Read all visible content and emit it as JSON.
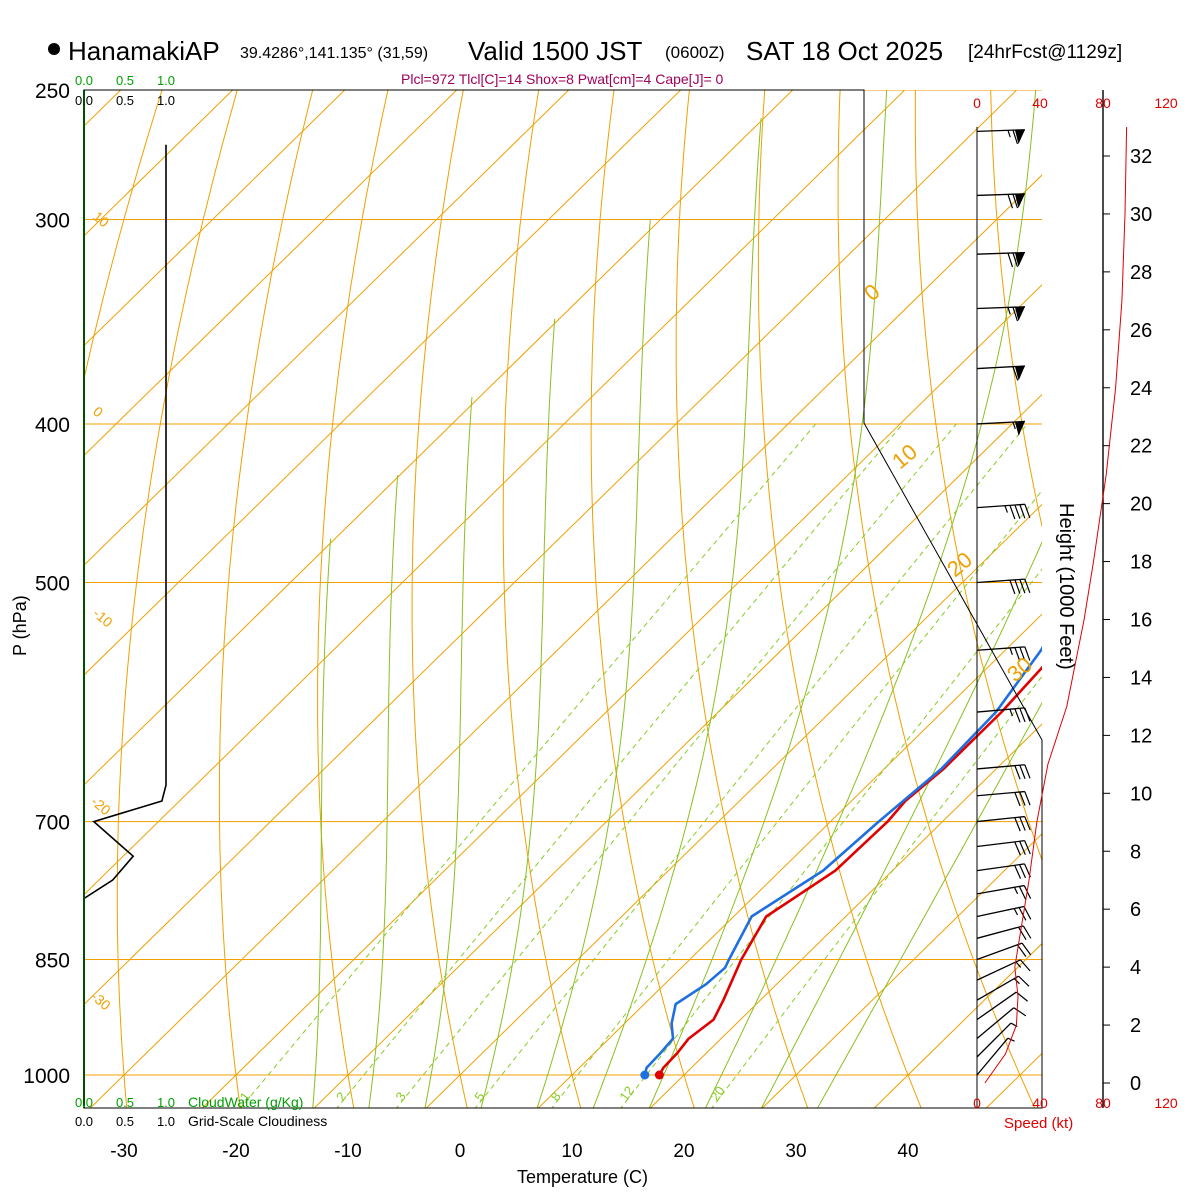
{
  "header": {
    "station": "HanamakiAP",
    "coords": "39.4286°,141.135° (31,59)",
    "valid": "Valid 1500 JST",
    "valid_utc": "(0600Z)",
    "date": "SAT 18 Oct 2025",
    "forecast": "[24hrFcst@1129z]",
    "indices": "Plcl=972 Tlcl[C]=14 Shox=8 Pwat[cm]=4 Cape[J]= 0"
  },
  "colors": {
    "isotherm": "#f0a000",
    "dry_adiabat": "#f0a000",
    "moist_adiabat": "#88c020",
    "mixing_ratio": "#88cc22",
    "temperature": "#e00000",
    "dewpoint": "#1e6fe0",
    "cloud": "#000000",
    "accent_green": "#00a000",
    "speed": "#e00000",
    "indices": "#a0005a"
  },
  "chart_data": {
    "type": "line",
    "title": "HanamakiAP Valid 1500 JST (0600Z) SAT 18 Oct 2025 [24hrFcst@1129z]",
    "xlabel": "Temperature (C)",
    "ylabel": "P (hPa)",
    "y2label": "Height (1000 Feet)",
    "speed_label": "Speed (kt)",
    "xlim": [
      -33,
      46
    ],
    "ylim": [
      1000,
      250
    ],
    "x_ticks": [
      "-30",
      "-20",
      "-10",
      "0",
      "10",
      "20",
      "30",
      "40"
    ],
    "p_ticks": [
      "250",
      "300",
      "400",
      "500",
      "700",
      "850",
      "1000"
    ],
    "height_ticks": [
      "0",
      "2",
      "4",
      "6",
      "8",
      "10",
      "12",
      "14",
      "16",
      "18",
      "20",
      "22",
      "24",
      "26",
      "28",
      "30",
      "32"
    ],
    "speed_ticks": [
      "0",
      "40",
      "80",
      "120"
    ],
    "cloud_labels": {
      "top_values": [
        "0.0",
        "0.5",
        "1.0"
      ],
      "top_values_black": [
        "0.0",
        "0.5",
        "1.0"
      ],
      "bottom_cloudwater": "CloudWater (g/Kg)",
      "bottom_cloudiness": "Grid-Scale Cloudiness",
      "bottom_values": [
        "0.0",
        "0.5",
        "1.0"
      ]
    },
    "mixing_ratio_labels": [
      "1",
      "2",
      "3",
      "5",
      "8",
      "12",
      "20"
    ],
    "mixing_ratios": [
      1,
      2,
      3,
      5,
      8,
      12,
      20
    ],
    "dry_adiabat_labels": [
      "10",
      "0",
      "-10",
      "-20",
      "-30"
    ],
    "right_theta_labels": [
      "0",
      "10",
      "20",
      "30"
    ],
    "series": [
      {
        "name": "Temperature",
        "points": [
          {
            "p": 1000,
            "t": 17.8
          },
          {
            "p": 990,
            "t": 17.5
          },
          {
            "p": 970,
            "t": 17.4
          },
          {
            "p": 950,
            "t": 17.1
          },
          {
            "p": 925,
            "t": 17.6
          },
          {
            "p": 900,
            "t": 16.7
          },
          {
            "p": 850,
            "t": 14.6
          },
          {
            "p": 800,
            "t": 12.9
          },
          {
            "p": 750,
            "t": 14.9
          },
          {
            "p": 700,
            "t": 15.1
          },
          {
            "p": 680,
            "t": 14.8
          },
          {
            "p": 650,
            "t": 15.3
          },
          {
            "p": 600,
            "t": 15.3
          },
          {
            "p": 550,
            "t": 14.7
          },
          {
            "p": 500,
            "t": 13.1
          },
          {
            "p": 450,
            "t": 10.6
          },
          {
            "p": 400,
            "t": 6.3
          },
          {
            "p": 350,
            "t": 0.4
          },
          {
            "p": 320,
            "t": -4.6
          },
          {
            "p": 300,
            "t": -7.7
          },
          {
            "p": 270,
            "t": -12.6
          }
        ]
      },
      {
        "name": "Dewpoint",
        "points": [
          {
            "p": 1000,
            "t": 16.5
          },
          {
            "p": 990,
            "t": 16.0
          },
          {
            "p": 970,
            "t": 15.9
          },
          {
            "p": 950,
            "t": 15.7
          },
          {
            "p": 930,
            "t": 14.2
          },
          {
            "p": 905,
            "t": 12.8
          },
          {
            "p": 880,
            "t": 13.7
          },
          {
            "p": 860,
            "t": 13.9
          },
          {
            "p": 850,
            "t": 13.5
          },
          {
            "p": 800,
            "t": 11.6
          },
          {
            "p": 750,
            "t": 13.8
          },
          {
            "p": 700,
            "t": 14.3
          },
          {
            "p": 650,
            "t": 15.1
          },
          {
            "p": 600,
            "t": 14.8
          },
          {
            "p": 550,
            "t": 13.2
          },
          {
            "p": 500,
            "t": 10.3
          },
          {
            "p": 450,
            "t": 6.5
          },
          {
            "p": 400,
            "t": 2.0
          },
          {
            "p": 350,
            "t": -4.2
          },
          {
            "p": 320,
            "t": -8.8
          },
          {
            "p": 300,
            "t": -12.8
          },
          {
            "p": 270,
            "t": -18.1
          }
        ]
      }
    ],
    "cloudiness": [
      {
        "p": 1000,
        "c": 0.0
      },
      {
        "p": 780,
        "c": 0.0
      },
      {
        "p": 760,
        "c": 0.35
      },
      {
        "p": 735,
        "c": 0.6
      },
      {
        "p": 700,
        "c": 0.12
      },
      {
        "p": 680,
        "c": 0.95
      },
      {
        "p": 665,
        "c": 1.0
      },
      {
        "p": 270,
        "c": 1.0
      }
    ],
    "winds": [
      {
        "p": 1000,
        "dir": 220,
        "spd": 5
      },
      {
        "p": 975,
        "dir": 225,
        "spd": 7
      },
      {
        "p": 950,
        "dir": 230,
        "spd": 10
      },
      {
        "p": 925,
        "dir": 235,
        "spd": 12
      },
      {
        "p": 900,
        "dir": 240,
        "spd": 15
      },
      {
        "p": 875,
        "dir": 245,
        "spd": 17
      },
      {
        "p": 850,
        "dir": 250,
        "spd": 20
      },
      {
        "p": 825,
        "dir": 255,
        "spd": 22
      },
      {
        "p": 800,
        "dir": 258,
        "spd": 25
      },
      {
        "p": 775,
        "dir": 260,
        "spd": 27
      },
      {
        "p": 750,
        "dir": 262,
        "spd": 28
      },
      {
        "p": 725,
        "dir": 263,
        "spd": 30
      },
      {
        "p": 700,
        "dir": 264,
        "spd": 30
      },
      {
        "p": 675,
        "dir": 265,
        "spd": 32
      },
      {
        "p": 650,
        "dir": 265,
        "spd": 32
      },
      {
        "p": 600,
        "dir": 265,
        "spd": 34
      },
      {
        "p": 550,
        "dir": 266,
        "spd": 36
      },
      {
        "p": 500,
        "dir": 266,
        "spd": 40
      },
      {
        "p": 450,
        "dir": 266,
        "spd": 46
      },
      {
        "p": 400,
        "dir": 267,
        "spd": 55
      },
      {
        "p": 370,
        "dir": 267,
        "spd": 60
      },
      {
        "p": 340,
        "dir": 268,
        "spd": 65
      },
      {
        "p": 315,
        "dir": 268,
        "spd": 70
      },
      {
        "p": 290,
        "dir": 268,
        "spd": 70
      },
      {
        "p": 265,
        "dir": 268,
        "spd": 65
      }
    ],
    "speed_profile": [
      {
        "h": 0,
        "spd": 5
      },
      {
        "h": 1,
        "spd": 18
      },
      {
        "h": 2,
        "spd": 25
      },
      {
        "h": 3,
        "spd": 26
      },
      {
        "h": 4,
        "spd": 24
      },
      {
        "h": 5,
        "spd": 27
      },
      {
        "h": 7,
        "spd": 33
      },
      {
        "h": 9,
        "spd": 38
      },
      {
        "h": 11,
        "spd": 45
      },
      {
        "h": 13,
        "spd": 57
      },
      {
        "h": 16,
        "spd": 68
      },
      {
        "h": 18,
        "spd": 74
      },
      {
        "h": 21,
        "spd": 82
      },
      {
        "h": 24,
        "spd": 88
      },
      {
        "h": 27,
        "spd": 92
      },
      {
        "h": 30,
        "spd": 94
      },
      {
        "h": 33,
        "spd": 95
      }
    ]
  }
}
